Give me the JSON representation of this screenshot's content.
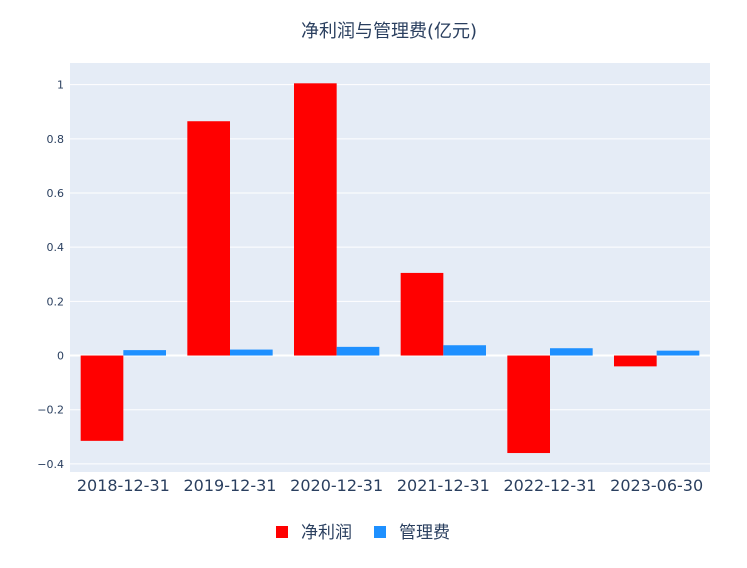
{
  "chart_data": {
    "type": "bar",
    "title": "净利润与管理费(亿元)",
    "categories": [
      "2018-12-31",
      "2019-12-31",
      "2020-12-31",
      "2021-12-31",
      "2022-12-31",
      "2023-06-30"
    ],
    "series": [
      {
        "name": "净利润",
        "color": "#ff0000",
        "values": [
          -0.315,
          0.865,
          1.005,
          0.305,
          -0.36,
          -0.04
        ]
      },
      {
        "name": "管理费",
        "color": "#1e90ff",
        "values": [
          0.02,
          0.022,
          0.032,
          0.038,
          0.027,
          0.018
        ]
      }
    ],
    "y_ticks": [
      -0.4,
      -0.2,
      0,
      0.2,
      0.4,
      0.6,
      0.8,
      1
    ],
    "y_tick_labels": [
      "−0.4",
      "−0.2",
      "0",
      "0.2",
      "0.4",
      "0.6",
      "0.8",
      "1"
    ],
    "ylim": [
      -0.43,
      1.08
    ],
    "grid": true,
    "legend_position": "bottom-center",
    "background_color": "#e5ecf6",
    "grid_color": "#ffffff"
  }
}
